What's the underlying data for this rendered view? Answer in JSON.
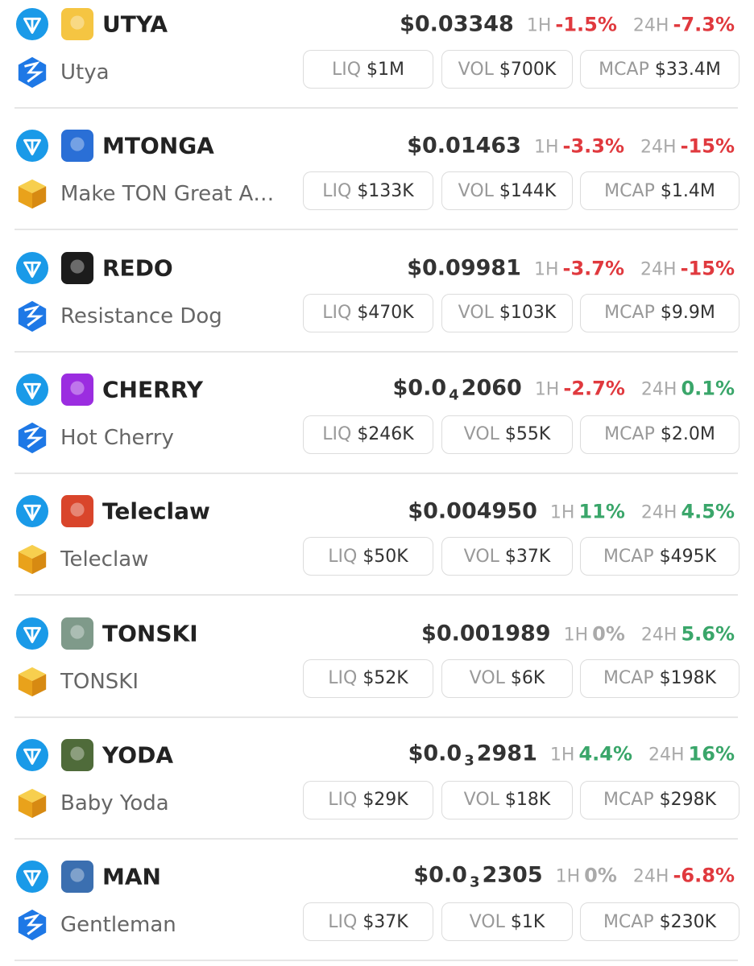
{
  "labels": {
    "h1": "1H",
    "h24": "24H",
    "liq": "LIQ",
    "vol": "VOL",
    "mcap": "MCAP"
  },
  "tokens": [
    {
      "symbol": "UTYA",
      "name": "Utya",
      "price": [
        "$0.03348"
      ],
      "change_1h": "-1.5%",
      "change_24h": "-7.3%",
      "liq": "$1M",
      "vol": "$700K",
      "mcap": "$33.4M",
      "avatar_color": "#f5c542",
      "dex_color": "#1e78e6"
    },
    {
      "symbol": "MTONGA",
      "name": "Make TON Great A…",
      "price": [
        "$0.01463"
      ],
      "change_1h": "-3.3%",
      "change_24h": "-15%",
      "liq": "$133K",
      "vol": "$144K",
      "mcap": "$1.4M",
      "avatar_color": "#2a6fd6",
      "dex_color": "#f0b429"
    },
    {
      "symbol": "REDO",
      "name": "Resistance Dog",
      "price": [
        "$0.09981"
      ],
      "change_1h": "-3.7%",
      "change_24h": "-15%",
      "liq": "$470K",
      "vol": "$103K",
      "mcap": "$9.9M",
      "avatar_color": "#1c1c1c",
      "dex_color": "#1e78e6"
    },
    {
      "symbol": "CHERRY",
      "name": "Hot Cherry",
      "price": [
        "$0.0",
        "4",
        "2060"
      ],
      "change_1h": "-2.7%",
      "change_24h": "0.1%",
      "liq": "$246K",
      "vol": "$55K",
      "mcap": "$2.0M",
      "avatar_color": "#9b2de0",
      "dex_color": "#1e78e6"
    },
    {
      "symbol": "Teleclaw",
      "name": "Teleclaw",
      "price": [
        "$0.004950"
      ],
      "change_1h": "11%",
      "change_24h": "4.5%",
      "liq": "$50K",
      "vol": "$37K",
      "mcap": "$495K",
      "avatar_color": "#d9452b",
      "dex_color": "#f0b429"
    },
    {
      "symbol": "TONSKI",
      "name": "TONSKI",
      "price": [
        "$0.001989"
      ],
      "change_1h": "0%",
      "change_24h": "5.6%",
      "liq": "$52K",
      "vol": "$6K",
      "mcap": "$198K",
      "avatar_color": "#7f9a8a",
      "dex_color": "#f0b429"
    },
    {
      "symbol": "YODA",
      "name": "Baby Yoda",
      "price": [
        "$0.0",
        "3",
        "2981"
      ],
      "change_1h": "4.4%",
      "change_24h": "16%",
      "liq": "$29K",
      "vol": "$18K",
      "mcap": "$298K",
      "avatar_color": "#4f6b3a",
      "dex_color": "#f0b429"
    },
    {
      "symbol": "MAN",
      "name": "Gentleman",
      "price": [
        "$0.0",
        "3",
        "2305"
      ],
      "change_1h": "0%",
      "change_24h": "-6.8%",
      "liq": "$37K",
      "vol": "$1K",
      "mcap": "$230K",
      "avatar_color": "#3b6fb0",
      "dex_color": "#1e78e6"
    }
  ]
}
